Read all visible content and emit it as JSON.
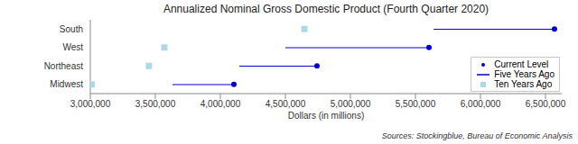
{
  "chart_data": {
    "type": "dumbbell",
    "orientation": "horizontal",
    "title": "Annualized Nominal Gross Domestic Product (Fourth Quarter 2020)",
    "x_label": "Dollars (in millions)",
    "source": "Sources: Stockingblue, Bureau of Economic Analysis",
    "categories": [
      "South",
      "West",
      "Northeast",
      "Midwest"
    ],
    "series": [
      {
        "name": "Current Level",
        "color": "#0000cc",
        "marker": "circle",
        "values": [
          6569000,
          5604000,
          4743000,
          4104000
        ]
      },
      {
        "name": "Five Years Ago",
        "color": "#0000cc",
        "line_style": "solid",
        "values": [
          5640000,
          4500000,
          4146000,
          3632000
        ]
      },
      {
        "name": "Ten Years Ago",
        "color": "#add8e6",
        "marker": "square",
        "values": [
          4646000,
          3569000,
          3451000,
          3010000
        ]
      }
    ],
    "xlim": [
      3000000,
      6625000
    ],
    "xticks": [
      {
        "value": 3000000,
        "label": "3,000,000"
      },
      {
        "value": 3500000,
        "label": "3,500,000"
      },
      {
        "value": 4000000,
        "label": "4,000,000"
      },
      {
        "value": 4500000,
        "label": "4,500,000"
      },
      {
        "value": 5000000,
        "label": "5,000,000"
      },
      {
        "value": 5500000,
        "label": "5,500,000"
      },
      {
        "value": 6000000,
        "label": "6,000,000"
      },
      {
        "value": 6500000,
        "label": "6,500,000"
      }
    ],
    "grid": false,
    "legend": "lower right"
  }
}
